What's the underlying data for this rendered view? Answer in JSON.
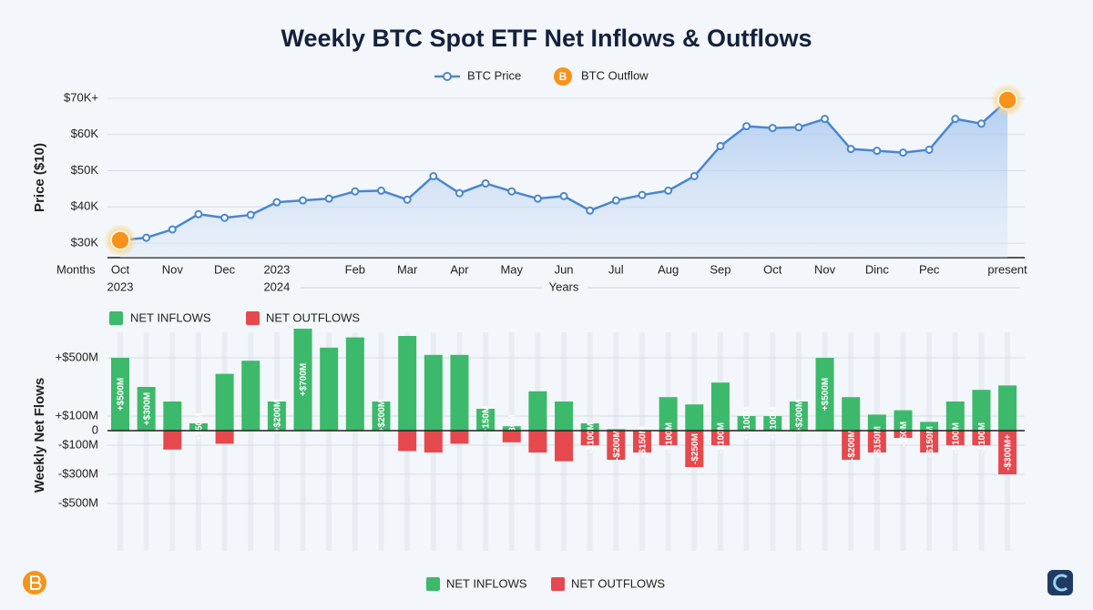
{
  "chart_data": [
    {
      "type": "line",
      "title": "Weekly BTC Spot ETF Net Inflows & Outflows",
      "ylabel": "Price ($10)",
      "xlabel": "Months",
      "year_title": "Years",
      "categories": [
        "Oct",
        null,
        "Nov",
        null,
        "Dec",
        null,
        "2023",
        null,
        null,
        "Feb",
        null,
        "Mar",
        null,
        "Apr",
        null,
        "May",
        null,
        "Jun",
        null,
        "Jul",
        null,
        "Aug",
        null,
        "Sep",
        null,
        "Oct",
        null,
        "Nov",
        null,
        "Dinc",
        null,
        "Pec",
        null,
        null,
        "present"
      ],
      "year_categories": [
        "2023",
        null,
        null,
        null,
        null,
        null,
        "2024",
        null,
        null,
        null,
        null,
        null,
        null,
        null,
        null,
        null,
        null,
        null,
        null,
        null,
        null,
        null,
        null,
        null,
        null,
        null,
        null,
        null,
        null,
        null,
        null,
        null,
        null,
        null,
        null
      ],
      "ylim": [
        26000,
        72000
      ],
      "yticks": [
        {
          "value": 30000,
          "label": "$30K"
        },
        {
          "value": 40000,
          "label": "$40K"
        },
        {
          "value": 50000,
          "label": "$50K"
        },
        {
          "value": 60000,
          "label": "$60K"
        },
        {
          "value": 70000,
          "label": "$70K+"
        }
      ],
      "grid": true,
      "series": [
        {
          "name": "BTC Price",
          "color": "#4a86cf",
          "values": [
            30800,
            31500,
            33800,
            38000,
            37000,
            37800,
            41300,
            41800,
            42300,
            44300,
            44500,
            42000,
            48500,
            43800,
            46500,
            44300,
            42300,
            43000,
            39000,
            41800,
            43300,
            44500,
            48500,
            56800,
            62300,
            61800,
            62000,
            64300,
            56000,
            55500,
            55000,
            55800,
            64300,
            63000,
            69500
          ]
        },
        {
          "name": "BTC Outflow",
          "color": "#f7931a",
          "values": [
            30800,
            null,
            null,
            null,
            null,
            null,
            null,
            null,
            null,
            null,
            null,
            null,
            null,
            null,
            null,
            null,
            null,
            null,
            null,
            null,
            null,
            null,
            null,
            null,
            null,
            null,
            null,
            null,
            null,
            null,
            null,
            null,
            null,
            null,
            69500
          ]
        }
      ]
    },
    {
      "type": "bar",
      "ylabel": "Weekly Net Flows",
      "ylim": [
        -700,
        700
      ],
      "yticks": [
        {
          "value": 500,
          "label": "+$500M"
        },
        {
          "value": 100,
          "label": "+$100M"
        },
        0,
        {
          "value": -100,
          "label": "-$100M"
        },
        {
          "value": -300,
          "label": "-$300M"
        },
        {
          "value": -500,
          "label": "-$500M"
        }
      ],
      "grid": true,
      "series": [
        {
          "name": "NET INFLOWS",
          "color": "#3cb96b",
          "values": [
            500,
            300,
            200,
            50,
            390,
            480,
            200,
            700,
            570,
            640,
            200,
            650,
            520,
            520,
            150,
            30,
            270,
            200,
            50,
            10,
            null,
            230,
            180,
            330,
            100,
            100,
            200,
            500,
            230,
            110,
            140,
            60,
            200,
            280,
            310
          ],
          "value_labels": [
            "+$500M",
            "+$300M",
            null,
            "+$50M",
            null,
            null,
            "+$200M",
            "+$700M",
            null,
            null,
            "+$200M",
            null,
            null,
            null,
            "+150M",
            "+$30M",
            null,
            null,
            null,
            null,
            null,
            null,
            null,
            null,
            "+$100M",
            "+$100M",
            "+$200M",
            "+$500M",
            null,
            null,
            null,
            null,
            null,
            null,
            null
          ]
        },
        {
          "name": "NET OUTFLOWS",
          "color": "#e5484d",
          "values": [
            null,
            null,
            -130,
            null,
            -90,
            null,
            null,
            null,
            null,
            null,
            null,
            -140,
            -150,
            -90,
            null,
            -80,
            -150,
            -210,
            -100,
            -200,
            -150,
            -100,
            -250,
            -100,
            null,
            null,
            null,
            null,
            -200,
            -150,
            -50,
            -150,
            -100,
            -100,
            -300
          ],
          "value_labels": [
            null,
            null,
            null,
            null,
            null,
            null,
            null,
            null,
            null,
            null,
            null,
            null,
            null,
            null,
            null,
            null,
            null,
            null,
            "-$100M",
            "-$200M",
            "-$150M",
            "-$100M",
            "-$250M",
            "-$100M",
            null,
            null,
            null,
            null,
            "-$200M",
            "-$150M",
            "-$50M",
            "-$150M",
            "-$100M",
            "-$100M",
            "-$300M+"
          ]
        }
      ]
    }
  ]
}
